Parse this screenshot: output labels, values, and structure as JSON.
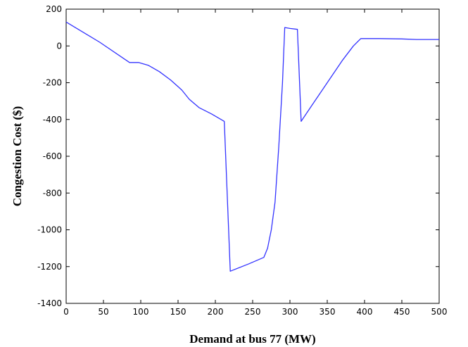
{
  "chart_data": {
    "type": "line",
    "title": "",
    "xlabel": "Demand at bus 77 (MW)",
    "ylabel": "Congestion Cost ($)",
    "xlim": [
      0,
      500
    ],
    "ylim": [
      -1400,
      200
    ],
    "xticks": [
      0,
      50,
      100,
      150,
      200,
      250,
      300,
      350,
      400,
      450,
      500
    ],
    "yticks": [
      -1400,
      -1200,
      -1000,
      -800,
      -600,
      -400,
      -200,
      0,
      200
    ],
    "grid": false,
    "legend": "none",
    "series": [
      {
        "color": "#3333ff",
        "x": [
          0,
          45,
          85,
          97,
          110,
          125,
          140,
          155,
          165,
          178,
          195,
          212,
          220,
          245,
          265,
          270,
          275,
          280,
          285,
          290,
          293,
          300,
          310,
          315,
          330,
          350,
          370,
          385,
          395,
          420,
          450,
          470,
          500
        ],
        "y": [
          130,
          20,
          -90,
          -90,
          -105,
          -140,
          -185,
          -240,
          -290,
          -335,
          -370,
          -410,
          -1225,
          -1185,
          -1150,
          -1100,
          -1000,
          -850,
          -550,
          -200,
          100,
          95,
          90,
          -410,
          -320,
          -200,
          -80,
          0,
          40,
          40,
          38,
          35,
          35
        ]
      }
    ]
  }
}
